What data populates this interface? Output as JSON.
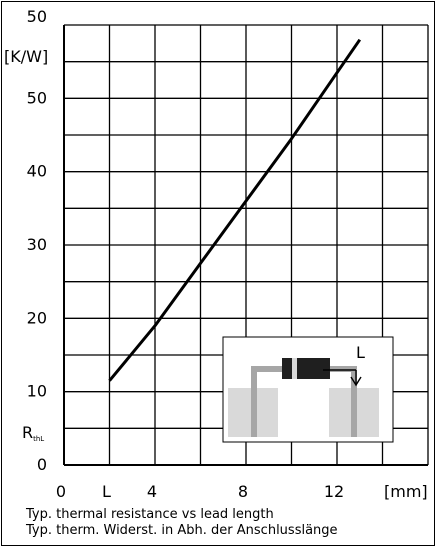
{
  "chart_data": {
    "type": "line",
    "ylabel_unit": "[K/W]",
    "ylabel_symbol": "R",
    "ylabel_subscript": "thL",
    "xlabel_unit": "[mm]",
    "x_tick_labels": [
      "0",
      "L",
      "4",
      "8",
      "12"
    ],
    "y_tick_labels": [
      "0",
      "10",
      "20",
      "30",
      "40",
      "50",
      "50"
    ],
    "xlim": [
      0,
      16
    ],
    "ylim": [
      0,
      60
    ],
    "grid": true,
    "series": [
      {
        "x": [
          2,
          4,
          6,
          8,
          10,
          12,
          13
        ],
        "y": [
          11.5,
          19,
          27.5,
          36,
          44.5,
          53.5,
          58
        ]
      }
    ],
    "inset_label": "L",
    "caption_en": "Typ. thermal resistance vs lead length",
    "caption_de": "Typ. therm. Widerst. in Abh. der Anschlusslänge"
  }
}
